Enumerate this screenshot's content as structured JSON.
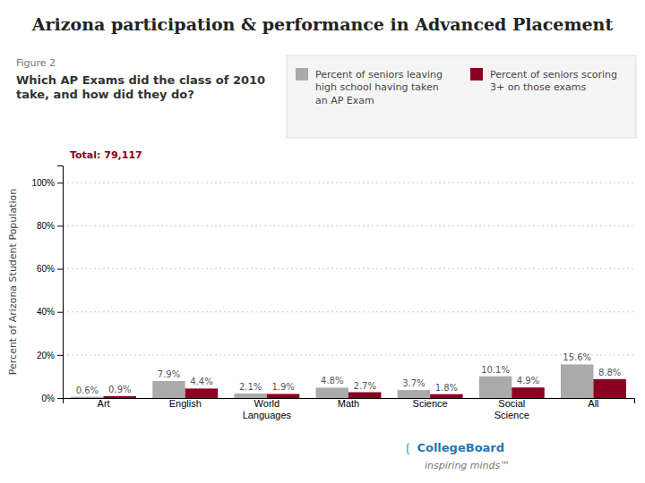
{
  "chart_data": {
    "type": "bar",
    "title": "Arizona participation & performance in Advanced Placement",
    "subtitle": "Which AP Exams did the class of 2010\ntake, and how did they do?",
    "annotations": [
      "Figure 2",
      "Total: 79,117",
      "❲  CollegeBoard",
      "inspiring minds™"
    ],
    "ylabel": "Percent of Arizona Student Population",
    "categories": [
      "Art",
      "English",
      "World\nLanguages",
      "Math",
      "Science",
      "Social\nScience",
      "All"
    ],
    "series": [
      {
        "name": "Percent of seniors leaving\nhigh school having taken\nan AP Exam",
        "color": "#aaaaaa",
        "values": [
          0.6,
          7.9,
          2.1,
          4.8,
          3.7,
          10.1,
          15.6
        ],
        "value_labels": [
          "0.6%",
          "7.9%",
          "2.1%",
          "4.8%",
          "3.7%",
          "10.1%",
          "15.6%"
        ]
      },
      {
        "name": "Percent of seniors scoring\n3+ on those exams",
        "color": "#8b0020",
        "values": [
          0.9,
          4.4,
          1.9,
          2.7,
          1.8,
          4.9,
          8.8
        ],
        "value_labels": [
          "0.9%",
          "4.4%",
          "1.9%",
          "2.7%",
          "1.8%",
          "4.9%",
          "8.8%"
        ]
      }
    ],
    "ylim": [
      0,
      108
    ],
    "yticks": [
      {
        "value": 0,
        "label": "0%"
      },
      {
        "value": 20,
        "label": "20%"
      },
      {
        "value": 40,
        "label": "40%"
      },
      {
        "value": 60,
        "label": "60%"
      },
      {
        "value": 80,
        "label": "80%"
      },
      {
        "value": 100,
        "label": "100%"
      }
    ],
    "grid": true,
    "legend": "top-right",
    "data_labels": true
  }
}
